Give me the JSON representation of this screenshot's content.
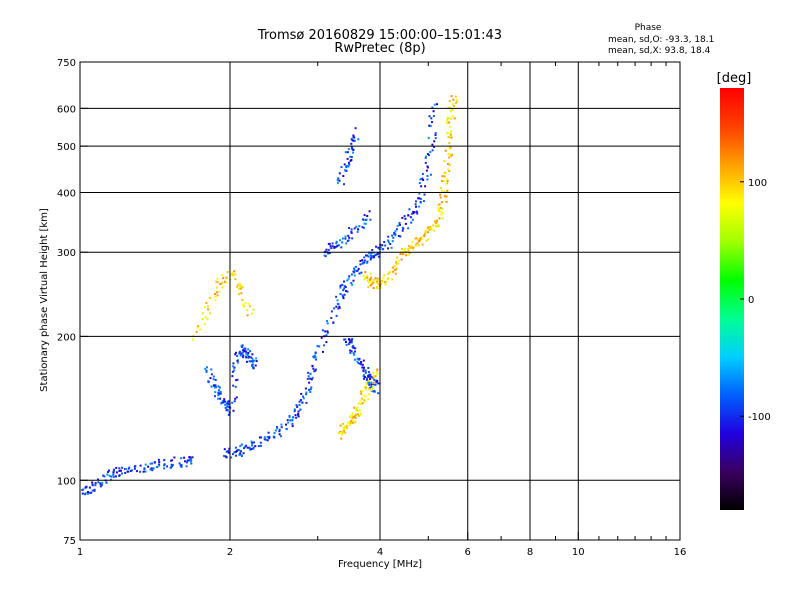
{
  "chart_data": {
    "type": "scatter",
    "title": "Tromsø 20160829 15:00:00–15:01:43",
    "subtitle": "RwPretec (8p)",
    "xlabel": "Frequency [MHz]",
    "ylabel": "Stationary phase Virtual Height [km]",
    "x_scale": "log",
    "y_scale": "log",
    "xlim": [
      1,
      16
    ],
    "ylim": [
      75,
      750
    ],
    "x_ticks": [
      1,
      2,
      4,
      6,
      8,
      10,
      16
    ],
    "x_tick_labels": [
      "1",
      "2",
      "4",
      "6",
      "8",
      "10",
      "16"
    ],
    "x_minor_ticks": [
      3,
      5,
      7,
      9,
      11,
      12,
      13,
      14,
      15
    ],
    "y_ticks": [
      75,
      100,
      200,
      300,
      400,
      500,
      600,
      750
    ],
    "y_tick_labels": [
      "75",
      "100",
      "200",
      "300",
      "400",
      "500",
      "600",
      "750"
    ],
    "grid": true,
    "stats": {
      "heading": "Phase",
      "lines": [
        "mean, sd,O: -93.3, 18.1",
        "mean, sd,X:  93.8, 18.4"
      ]
    },
    "colorbar": {
      "label": "[deg]",
      "ticks": [
        100,
        0,
        -100
      ],
      "tick_labels": [
        "100",
        "0",
        "-100"
      ],
      "range": [
        -180,
        180
      ],
      "colors": [
        "#000000",
        "#3a0060",
        "#2000e0",
        "#0060ff",
        "#00d0ff",
        "#00ff90",
        "#00ff00",
        "#a0ff00",
        "#ffff00",
        "#ffa000",
        "#ff4000",
        "#ff0000"
      ]
    },
    "series": [
      {
        "mode": "O",
        "mean_phase": -93.3,
        "traces": [
          {
            "f": [
              1.0,
              1.05,
              1.1,
              1.15,
              1.2,
              1.3,
              1.4,
              1.5,
              1.6,
              1.7
            ],
            "h": [
              95,
              97,
              100,
              103,
              105,
              107,
              108,
              109,
              110,
              110
            ]
          },
          {
            "f": [
              1.95,
              2.05,
              2.15,
              2.3,
              2.45,
              2.6,
              2.7,
              2.8,
              2.9,
              3.0,
              3.15,
              3.3,
              3.4,
              3.55,
              3.7,
              3.85,
              4.0,
              4.2,
              4.4,
              4.6,
              4.8,
              4.95,
              5.05,
              5.1
            ],
            "h": [
              114,
              115,
              117,
              121,
              126,
              132,
              140,
              150,
              165,
              185,
              210,
              240,
              255,
              275,
              290,
              298,
              305,
              320,
              340,
              360,
              390,
              440,
              520,
              620
            ]
          },
          {
            "f": [
              1.8,
              1.85,
              1.9,
              1.95,
              2.0,
              2.05,
              2.1,
              2.15,
              2.2,
              2.25
            ],
            "h": [
              170,
              160,
              150,
              145,
              140,
              175,
              190,
              185,
              180,
              175
            ]
          },
          {
            "f": [
              3.4,
              3.5,
              3.6,
              3.7,
              3.8,
              3.85,
              3.9
            ],
            "h": [
              200,
              190,
              180,
              170,
              165,
              160,
              155
            ]
          },
          {
            "f": [
              3.1,
              3.2,
              3.4,
              3.6,
              3.8
            ],
            "h": [
              300,
              310,
              320,
              340,
              360
            ]
          },
          {
            "f": [
              3.3,
              3.4,
              3.5,
              3.6
            ],
            "h": [
              420,
              460,
              500,
              540
            ]
          }
        ]
      },
      {
        "mode": "X",
        "mean_phase": 93.8,
        "traces": [
          {
            "f": [
              3.7,
              3.8,
              3.9,
              4.0,
              4.2,
              4.4,
              4.6,
              4.8,
              5.0,
              5.2,
              5.3,
              5.4,
              5.45,
              5.5,
              5.55,
              5.6
            ],
            "h": [
              270,
              262,
              258,
              260,
              275,
              295,
              310,
              320,
              335,
              350,
              380,
              420,
              470,
              530,
              590,
              640
            ]
          },
          {
            "f": [
              3.3,
              3.4,
              3.5,
              3.6,
              3.7,
              3.8,
              3.9
            ],
            "h": [
              125,
              130,
              135,
              140,
              150,
              160,
              170
            ]
          },
          {
            "f": [
              1.7,
              1.8,
              1.9,
              2.0,
              2.1,
              2.2
            ],
            "h": [
              200,
              230,
              260,
              270,
              250,
              220
            ]
          }
        ]
      }
    ]
  }
}
